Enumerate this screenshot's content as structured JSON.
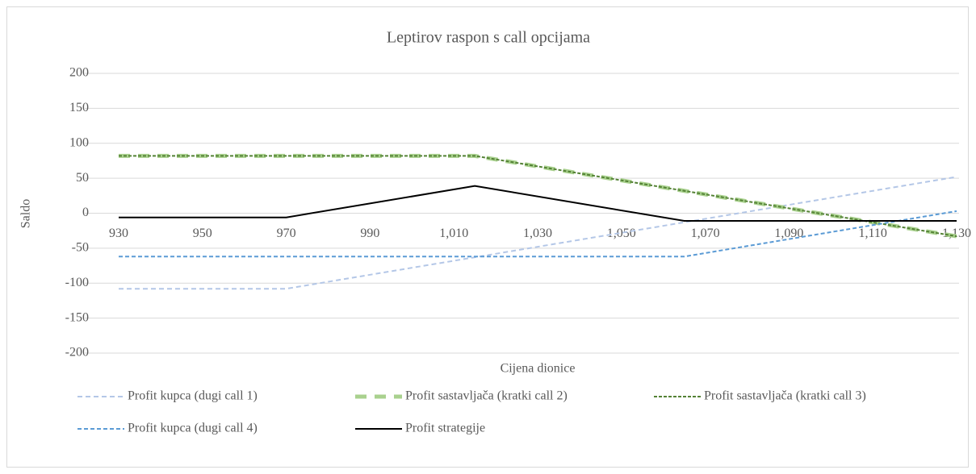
{
  "chart_data": {
    "type": "line",
    "title": "Leptirov raspon s call opcijama",
    "x_label": "Cijena dionice",
    "y_label": "Saldo",
    "x": [
      930,
      970,
      1015,
      1065,
      1130
    ],
    "xlim": [
      930,
      1130
    ],
    "xticks": [
      930,
      950,
      970,
      990,
      {
        "value": 1010,
        "label": "1,010"
      },
      {
        "value": 1030,
        "label": "1,030"
      },
      {
        "value": 1050,
        "label": "1,050"
      },
      {
        "value": 1070,
        "label": "1,070"
      },
      {
        "value": 1090,
        "label": "1,090"
      },
      {
        "value": 1110,
        "label": "1,110"
      },
      {
        "value": 1130,
        "label": "1,130"
      }
    ],
    "ylim": [
      -200,
      200
    ],
    "yticks": [
      -200,
      -150,
      -100,
      -50,
      0,
      50,
      100,
      150,
      200
    ],
    "grid": true,
    "legend": "bottom",
    "series": [
      {
        "name": "Profit kupca (dugi call 1)",
        "color": "#b4c7e7",
        "values": [
          -108,
          -108,
          -63,
          -13,
          52
        ]
      },
      {
        "name": "Profit sastavljača (kratki call 2)",
        "color": "#a9d18e",
        "values": [
          82,
          82,
          82,
          32,
          -33
        ]
      },
      {
        "name": "Profit sastavljača (kratki call 3)",
        "color": "#548235",
        "values": [
          82,
          82,
          82,
          32,
          -33
        ]
      },
      {
        "name": "Profit kupca (dugi call 4)",
        "color": "#5b9bd5",
        "values": [
          -62,
          -62,
          -62,
          -62,
          3
        ]
      },
      {
        "name": "Profit strategije",
        "color": "#000000",
        "values": [
          -6,
          -6,
          39,
          -11,
          -11
        ]
      }
    ]
  }
}
